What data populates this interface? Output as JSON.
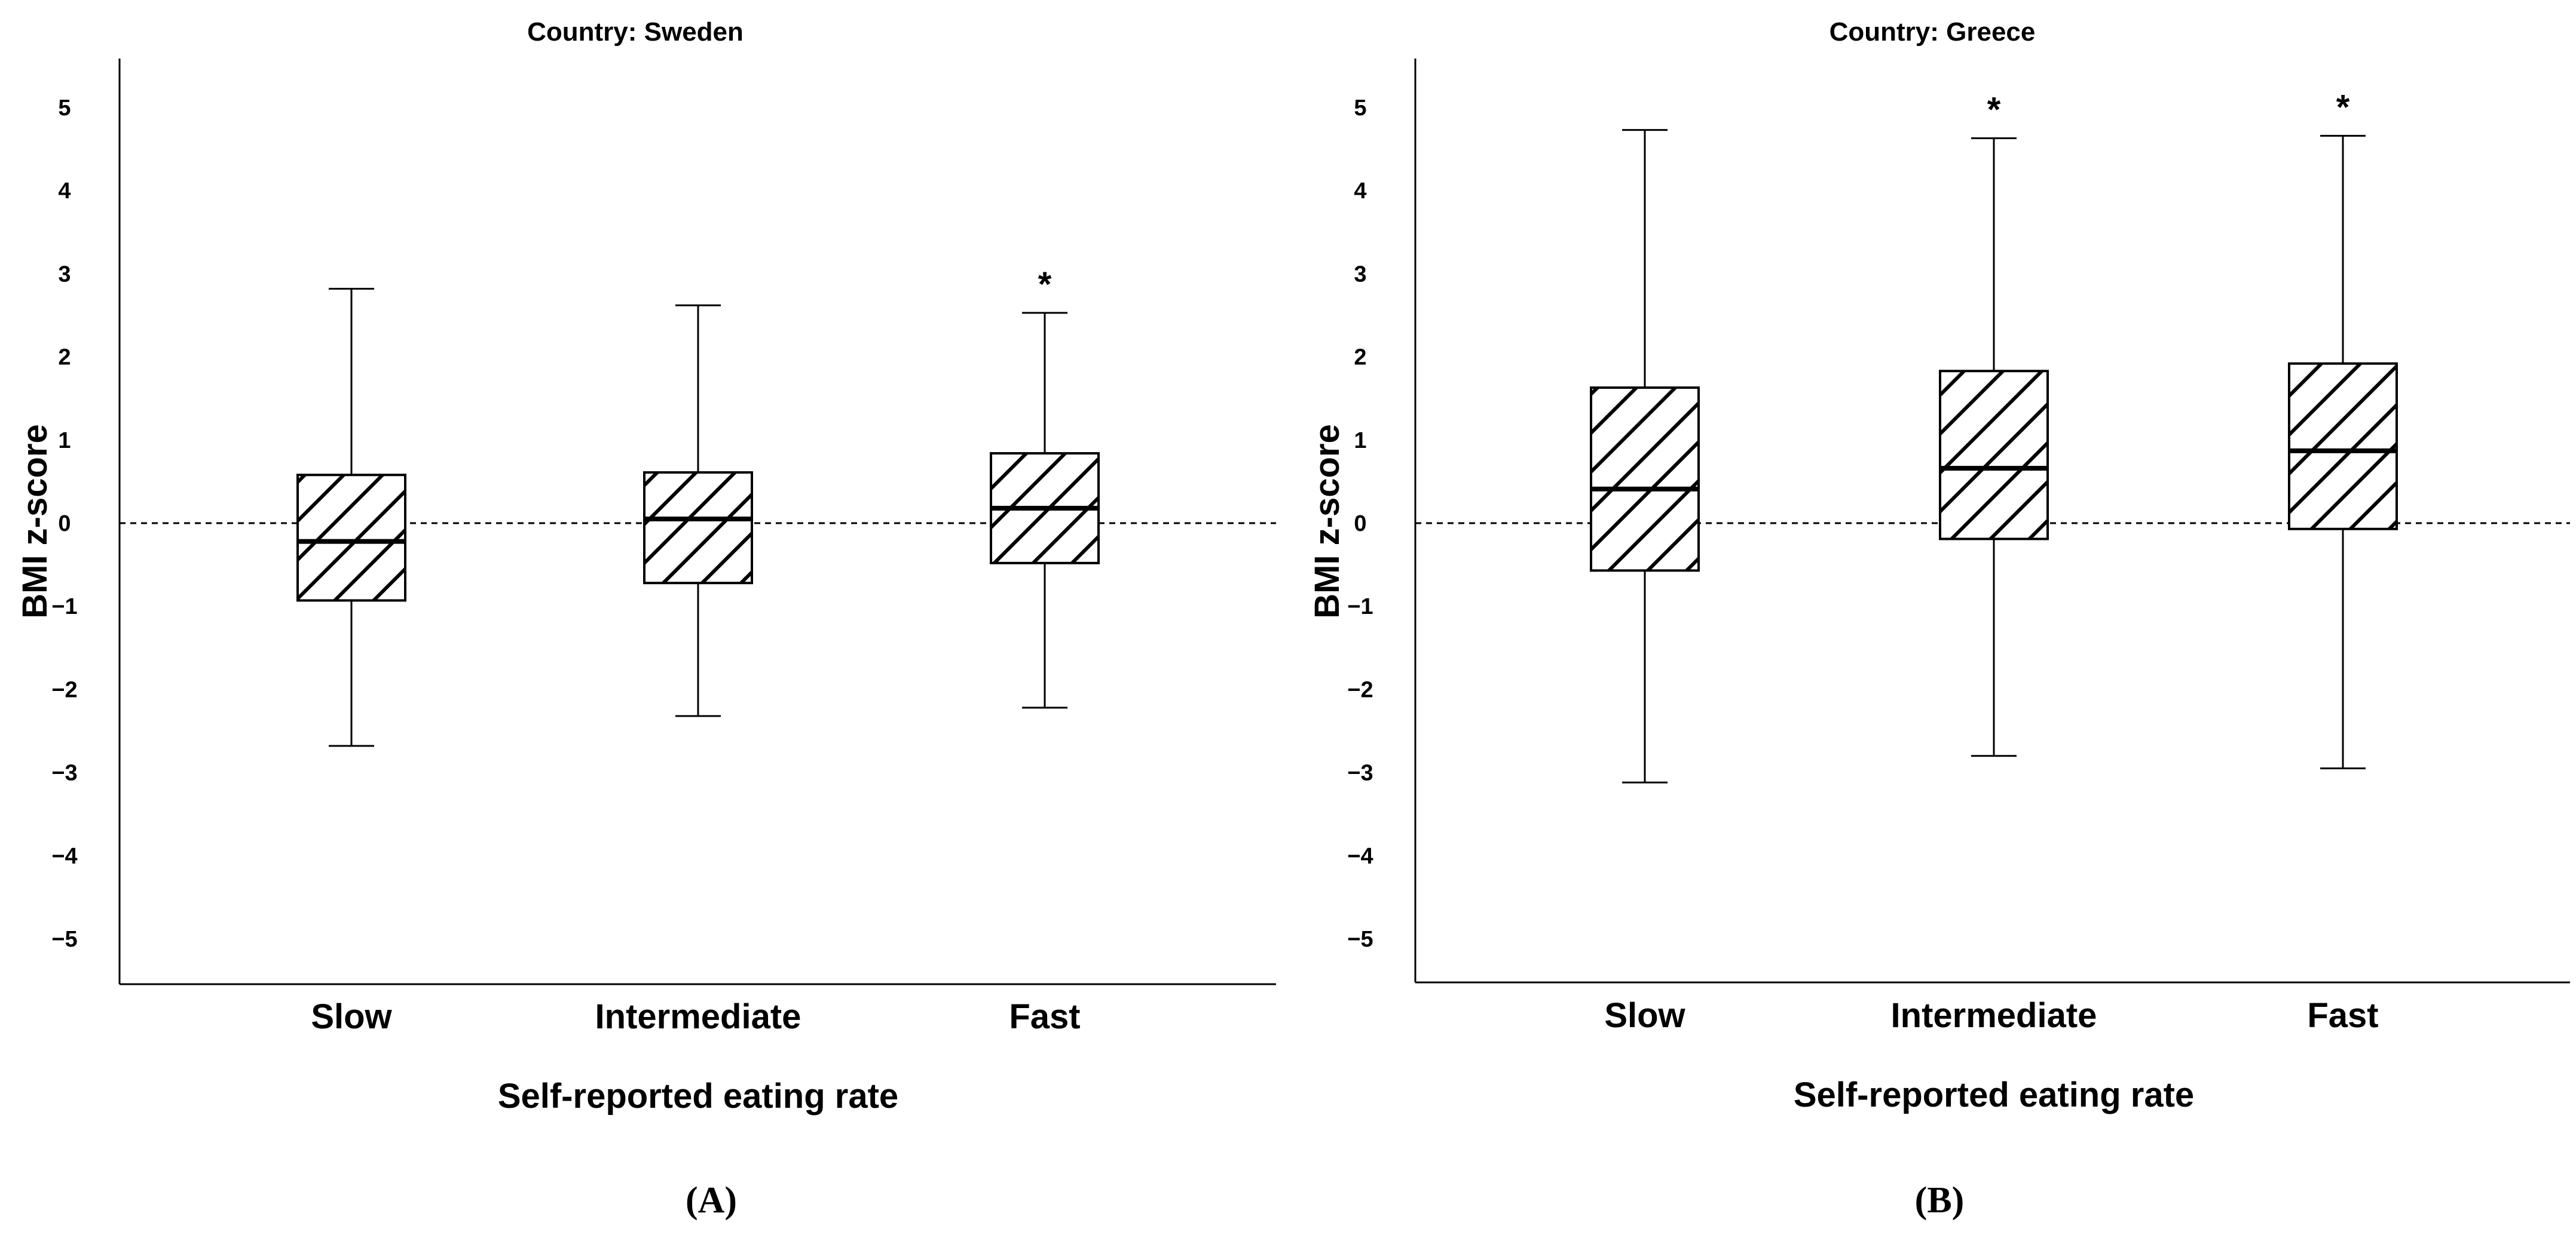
{
  "chart_data": [
    {
      "type": "box",
      "title": "Country: Sweden",
      "panel_label": "(A)",
      "xlabel": "Self-reported eating rate",
      "ylabel": "BMI z-score",
      "ylim": [
        -5.5,
        5.5
      ],
      "yticks": [
        5,
        4,
        3,
        2,
        1,
        0,
        -1,
        -2,
        -3,
        -4,
        -5
      ],
      "ytick_labels": [
        "5",
        "4",
        "3",
        "2",
        "1",
        "0",
        "−1",
        "−2",
        "−3",
        "−4",
        "−5"
      ],
      "reference_line": 0,
      "categories": [
        "Slow",
        "Intermediate",
        "Fast"
      ],
      "boxes": [
        {
          "category": "Slow",
          "whisker_low": -2.68,
          "q1": -0.93,
          "median": -0.22,
          "q3": 0.58,
          "whisker_high": 2.82,
          "annotation": ""
        },
        {
          "category": "Intermediate",
          "whisker_low": -2.32,
          "q1": -0.72,
          "median": 0.05,
          "q3": 0.61,
          "whisker_high": 2.62,
          "annotation": ""
        },
        {
          "category": "Fast",
          "whisker_low": -2.22,
          "q1": -0.48,
          "median": 0.18,
          "q3": 0.84,
          "whisker_high": 2.53,
          "annotation": "*"
        }
      ]
    },
    {
      "type": "box",
      "title": "Country: Greece",
      "panel_label": "(B)",
      "xlabel": "Self-reported eating rate",
      "ylabel": "BMI z-score",
      "ylim": [
        -5.5,
        5.5
      ],
      "yticks": [
        5,
        4,
        3,
        2,
        1,
        0,
        -1,
        -2,
        -3,
        -4,
        -5
      ],
      "ytick_labels": [
        "5",
        "4",
        "3",
        "2",
        "1",
        "0",
        "−1",
        "−2",
        "−3",
        "−4",
        "−5"
      ],
      "reference_line": 0,
      "categories": [
        "Slow",
        "Intermediate",
        "Fast"
      ],
      "boxes": [
        {
          "category": "Slow",
          "whisker_low": -3.12,
          "q1": -0.57,
          "median": 0.41,
          "q3": 1.63,
          "whisker_high": 4.73,
          "annotation": ""
        },
        {
          "category": "Intermediate",
          "whisker_low": -2.8,
          "q1": -0.19,
          "median": 0.66,
          "q3": 1.83,
          "whisker_high": 4.63,
          "annotation": "*"
        },
        {
          "category": "Fast",
          "whisker_low": -2.95,
          "q1": -0.07,
          "median": 0.87,
          "q3": 1.92,
          "whisker_high": 4.66,
          "annotation": "*"
        }
      ]
    }
  ]
}
